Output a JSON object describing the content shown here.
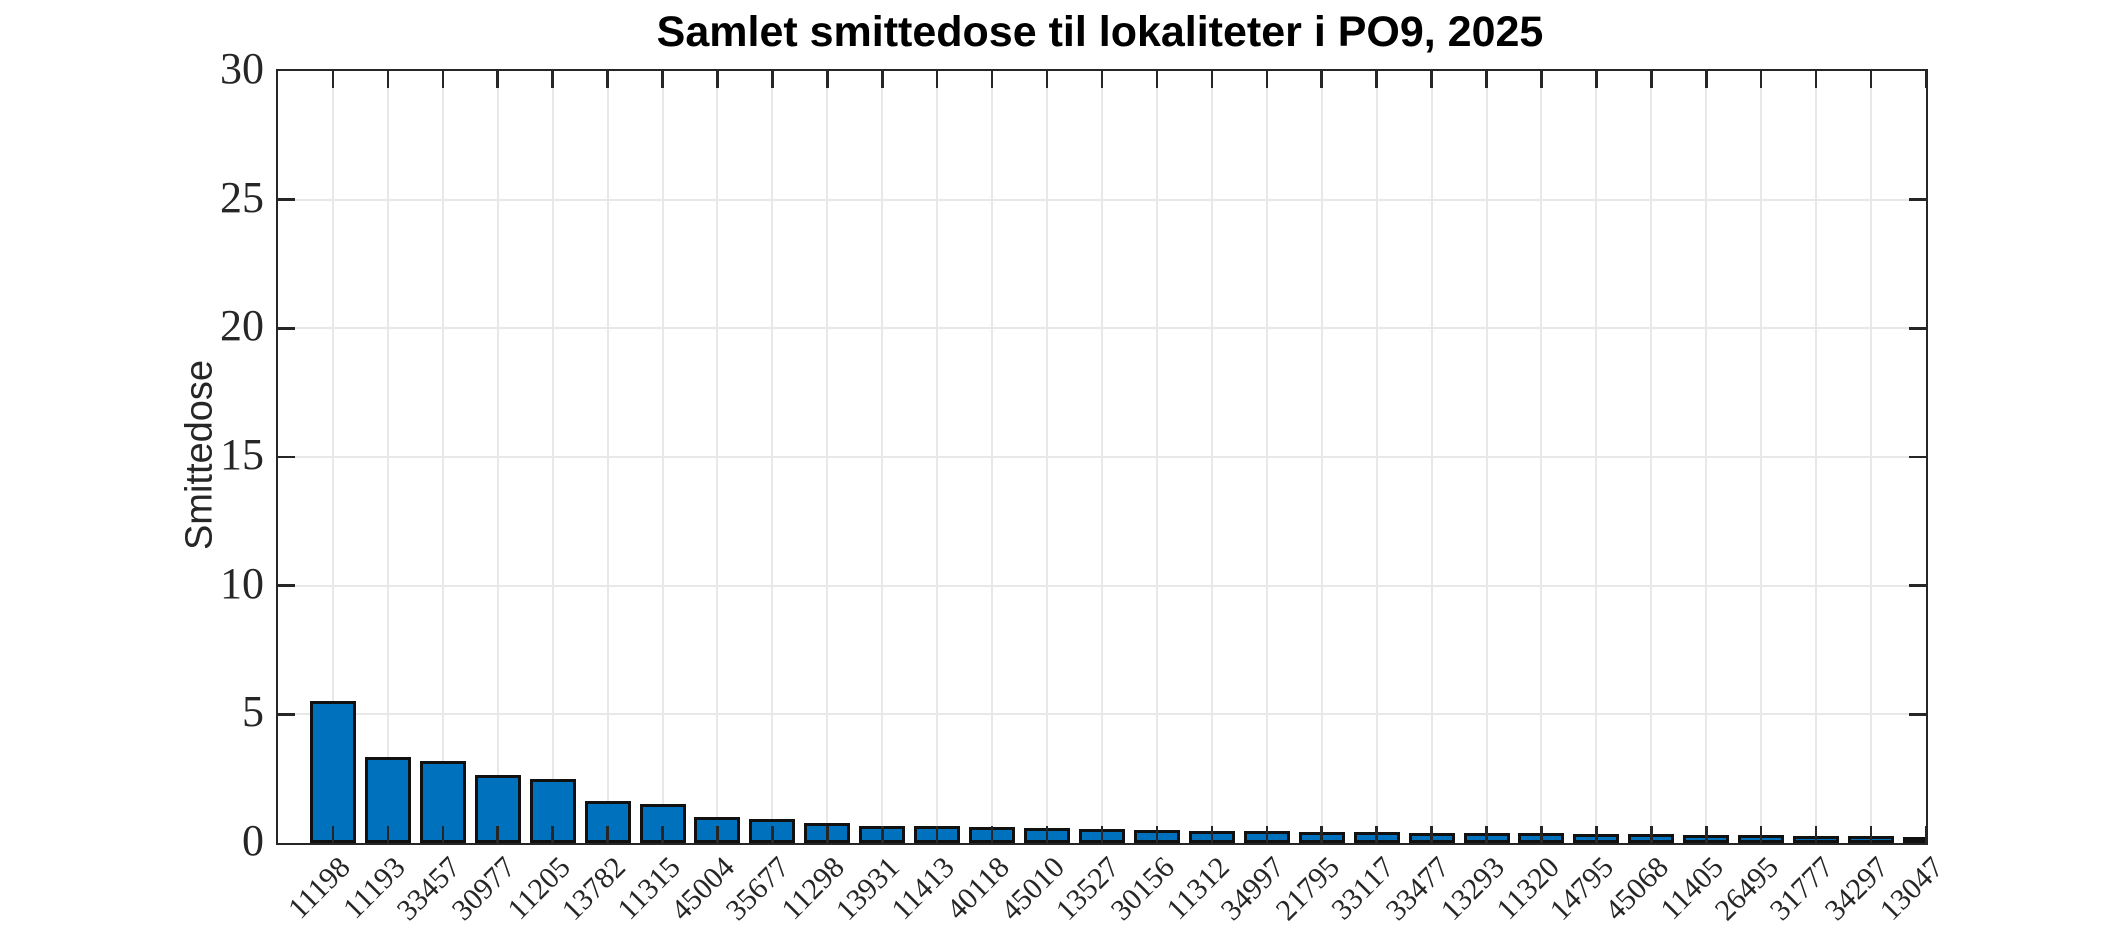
{
  "chart_data": {
    "type": "bar",
    "title": "Samlet smittedose til lokaliteter i PO9, 2025",
    "xlabel": "",
    "ylabel": "Smittedose",
    "ylim": [
      0,
      30
    ],
    "yticks": [
      0,
      5,
      10,
      15,
      20,
      25,
      30
    ],
    "grid": true,
    "legend": "none",
    "bar_color": "#0072BD",
    "bar_edge_color": "#111111",
    "axis_color": "#262626",
    "grid_color": "#e8e8e8",
    "tick_label_color": "#262626",
    "title_color": "#000000",
    "categories": [
      "11198",
      "11193",
      "33457",
      "30977",
      "11205",
      "13782",
      "11315",
      "45004",
      "35677",
      "11298",
      "13931",
      "11413",
      "40118",
      "45010",
      "13527",
      "30156",
      "11312",
      "34997",
      "21795",
      "33117",
      "33477",
      "13293",
      "11320",
      "14795",
      "45068",
      "11405",
      "26495",
      "31777",
      "34297",
      "13047"
    ],
    "values": [
      5.5,
      3.35,
      3.2,
      2.65,
      2.5,
      1.65,
      1.5,
      1.02,
      0.95,
      0.79,
      0.68,
      0.66,
      0.62,
      0.58,
      0.56,
      0.52,
      0.48,
      0.45,
      0.43,
      0.42,
      0.4,
      0.38,
      0.37,
      0.36,
      0.35,
      0.33,
      0.31,
      0.28,
      0.26,
      0.2
    ]
  }
}
